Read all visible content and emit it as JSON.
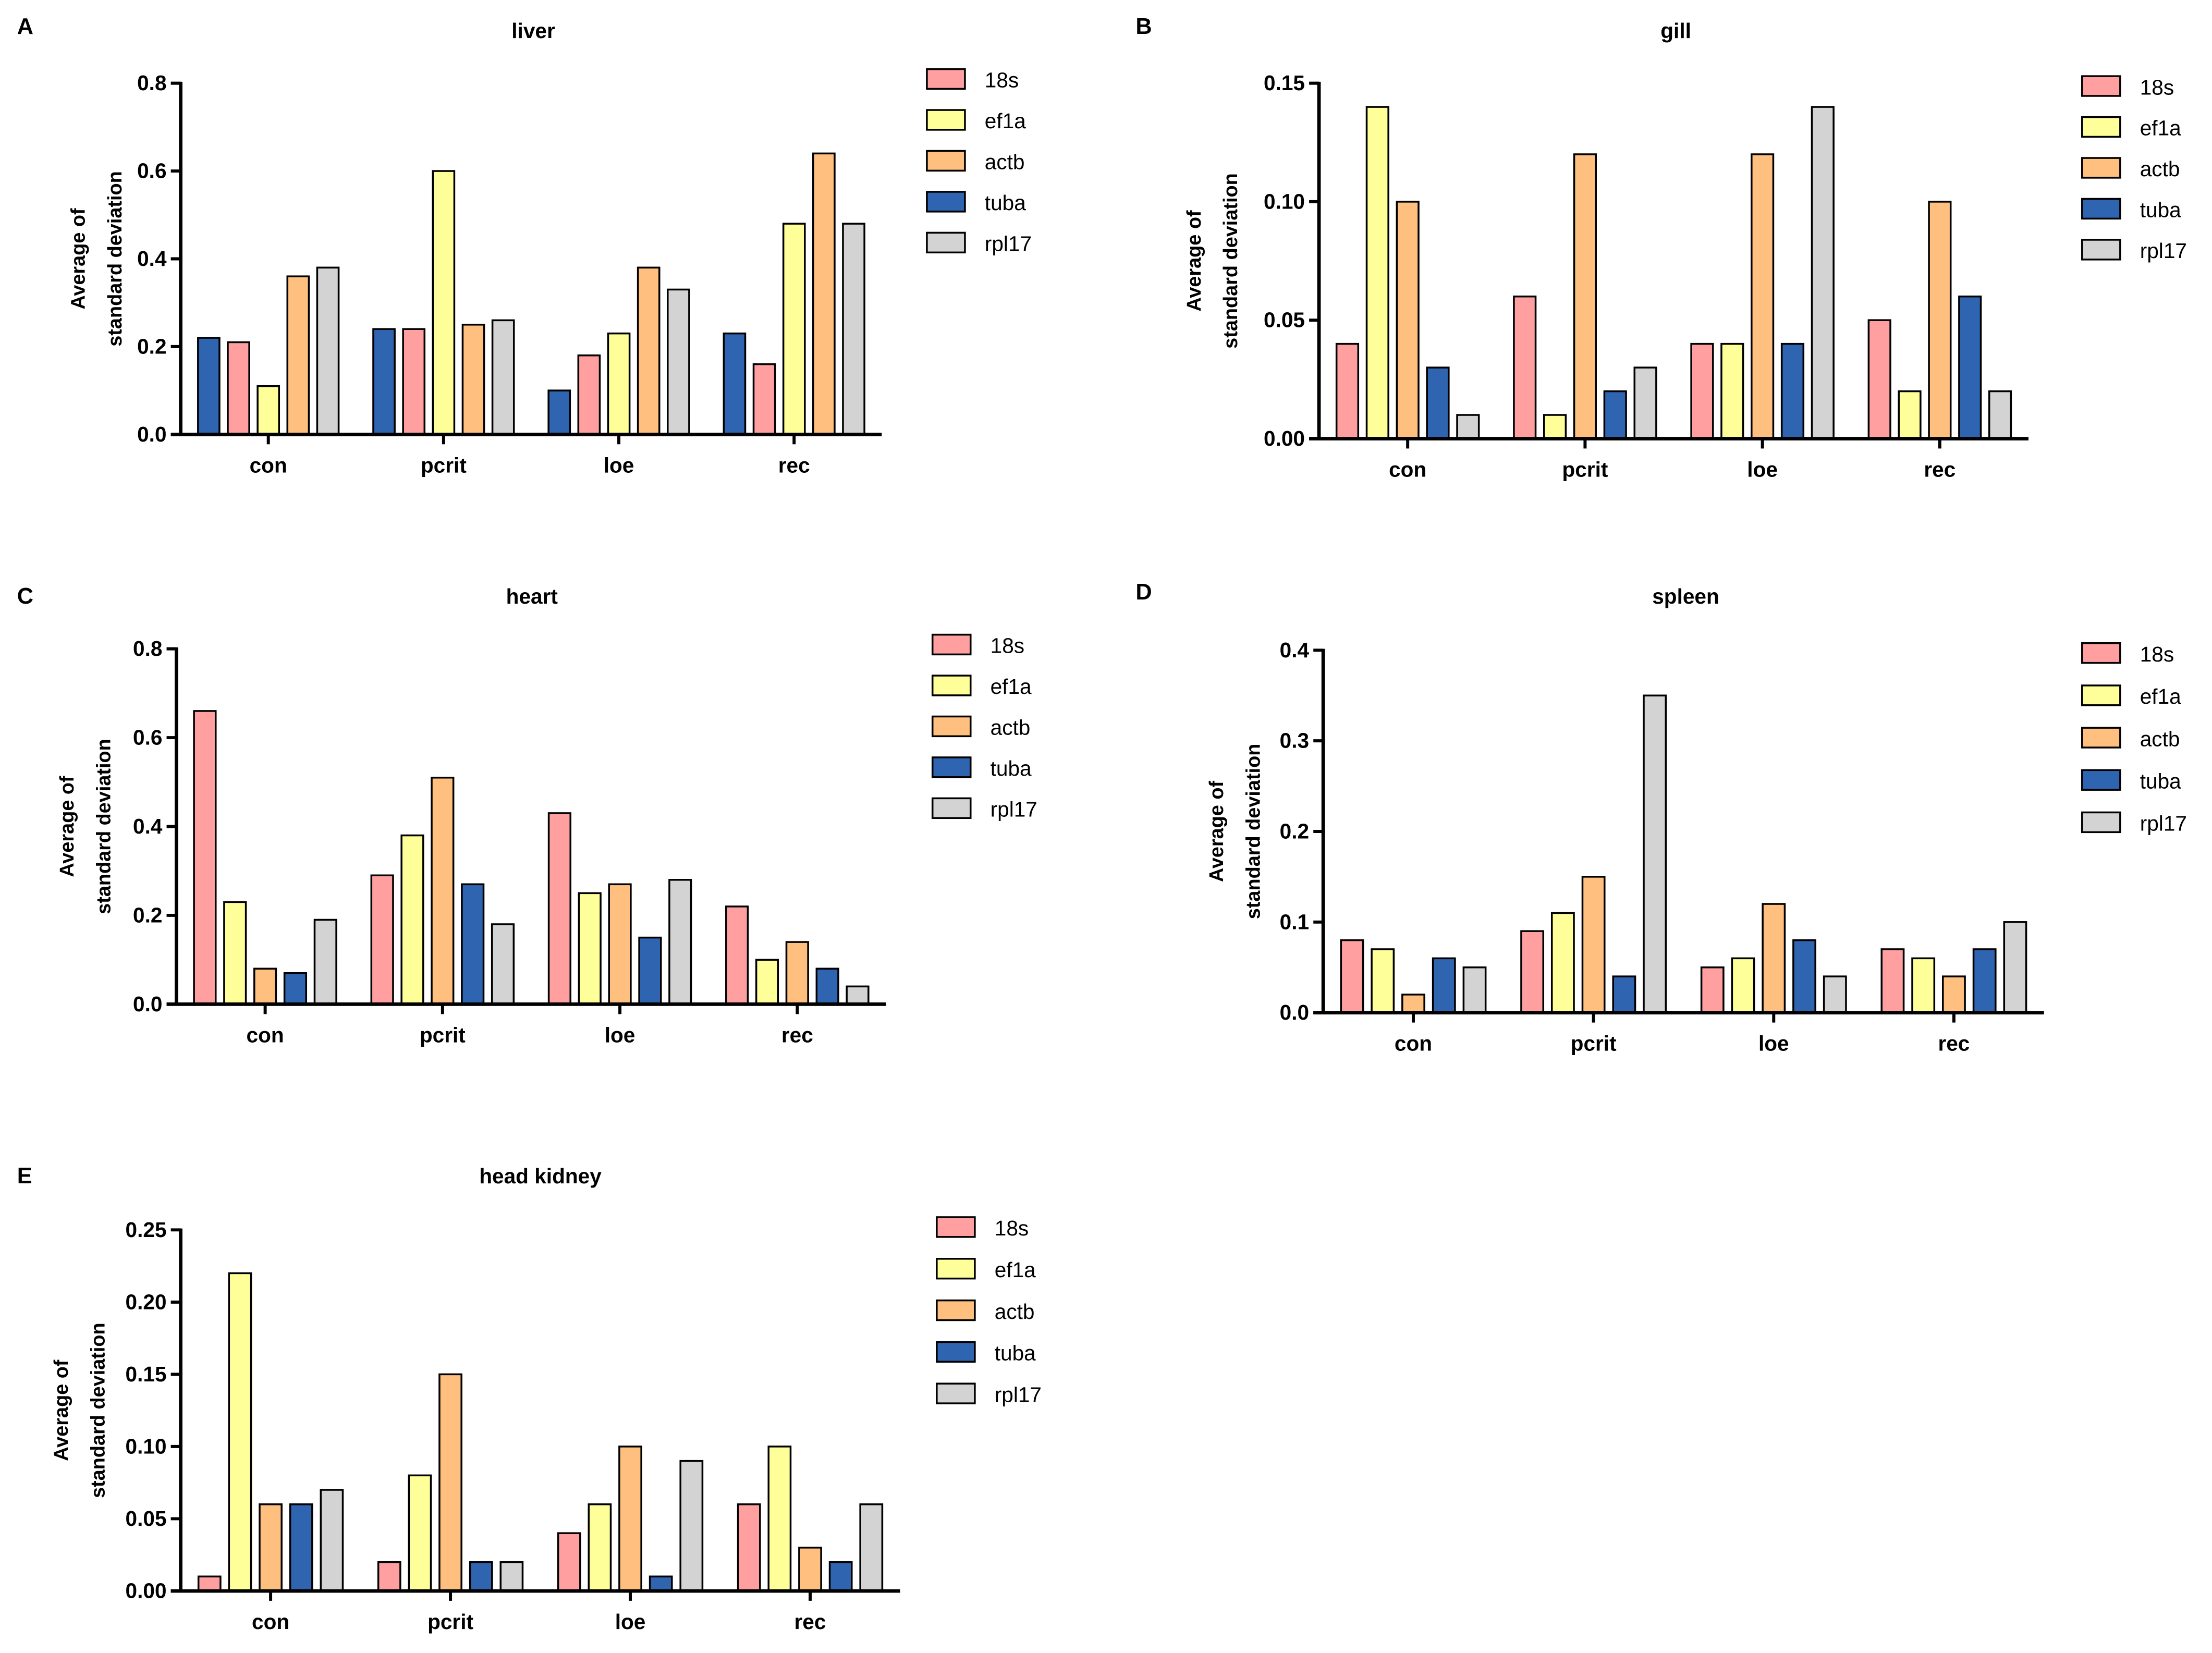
{
  "colors": {
    "18s": "#FF9F9F",
    "ef1a": "#FFFF99",
    "actb": "#FFBF7F",
    "tuba": "#2E64B0",
    "rpl17": "#D3D3D3"
  },
  "legend": [
    "18s",
    "ef1a",
    "actb",
    "tuba",
    "rpl17"
  ],
  "chart_data": [
    {
      "panel": "A",
      "type": "bar",
      "title": "liver",
      "ylabel": [
        "Average of",
        "standard deviation"
      ],
      "ylim": [
        0,
        0.8
      ],
      "yticks": [
        0,
        0.2,
        0.4,
        0.6,
        0.8
      ],
      "ytick_labels": [
        "0.0",
        "0.2",
        "0.4",
        "0.6",
        "0.8"
      ],
      "categories": [
        "con",
        "pcrit",
        "loe",
        "rec"
      ],
      "bar_order": [
        "tuba",
        "18s",
        "ef1a",
        "actb",
        "rpl17"
      ],
      "series": [
        {
          "name": "18s",
          "values": [
            0.21,
            0.24,
            0.18,
            0.16
          ]
        },
        {
          "name": "ef1a",
          "values": [
            0.11,
            0.6,
            0.23,
            0.48
          ]
        },
        {
          "name": "actb",
          "values": [
            0.36,
            0.25,
            0.38,
            0.64
          ]
        },
        {
          "name": "tuba",
          "values": [
            0.22,
            0.24,
            0.1,
            0.23
          ]
        },
        {
          "name": "rpl17",
          "values": [
            0.38,
            0.26,
            0.33,
            0.48
          ]
        }
      ]
    },
    {
      "panel": "B",
      "type": "bar",
      "title": "gill",
      "ylabel": [
        "Average of",
        "standard deviation"
      ],
      "ylim": [
        0,
        0.15
      ],
      "yticks": [
        0,
        0.05,
        0.1,
        0.15
      ],
      "ytick_labels": [
        "0.00",
        "0.05",
        "0.10",
        "0.15"
      ],
      "categories": [
        "con",
        "pcrit",
        "loe",
        "rec"
      ],
      "bar_order": [
        "18s",
        "ef1a",
        "actb",
        "tuba",
        "rpl17"
      ],
      "series": [
        {
          "name": "18s",
          "values": [
            0.04,
            0.06,
            0.04,
            0.05
          ]
        },
        {
          "name": "ef1a",
          "values": [
            0.14,
            0.01,
            0.04,
            0.02
          ]
        },
        {
          "name": "actb",
          "values": [
            0.1,
            0.12,
            0.12,
            0.1
          ]
        },
        {
          "name": "tuba",
          "values": [
            0.03,
            0.02,
            0.04,
            0.06
          ]
        },
        {
          "name": "rpl17",
          "values": [
            0.01,
            0.03,
            0.14,
            0.02
          ]
        }
      ]
    },
    {
      "panel": "C",
      "type": "bar",
      "title": "heart",
      "ylabel": [
        "Average of",
        "standard deviation"
      ],
      "ylim": [
        0,
        0.8
      ],
      "yticks": [
        0,
        0.2,
        0.4,
        0.6,
        0.8
      ],
      "ytick_labels": [
        "0.0",
        "0.2",
        "0.4",
        "0.6",
        "0.8"
      ],
      "categories": [
        "con",
        "pcrit",
        "loe",
        "rec"
      ],
      "bar_order": [
        "18s",
        "ef1a",
        "actb",
        "tuba",
        "rpl17"
      ],
      "series": [
        {
          "name": "18s",
          "values": [
            0.66,
            0.29,
            0.43,
            0.22
          ]
        },
        {
          "name": "ef1a",
          "values": [
            0.23,
            0.38,
            0.25,
            0.1
          ]
        },
        {
          "name": "actb",
          "values": [
            0.08,
            0.51,
            0.27,
            0.14
          ]
        },
        {
          "name": "tuba",
          "values": [
            0.07,
            0.27,
            0.15,
            0.08
          ]
        },
        {
          "name": "rpl17",
          "values": [
            0.19,
            0.18,
            0.28,
            0.04
          ]
        }
      ]
    },
    {
      "panel": "D",
      "type": "bar",
      "title": "spleen",
      "ylabel": [
        "Average of",
        "standard deviation"
      ],
      "ylim": [
        0,
        0.4
      ],
      "yticks": [
        0,
        0.1,
        0.2,
        0.3,
        0.4
      ],
      "ytick_labels": [
        "0.0",
        "0.1",
        "0.2",
        "0.3",
        "0.4"
      ],
      "categories": [
        "con",
        "pcrit",
        "loe",
        "rec"
      ],
      "bar_order": [
        "18s",
        "ef1a",
        "actb",
        "tuba",
        "rpl17"
      ],
      "series": [
        {
          "name": "18s",
          "values": [
            0.08,
            0.09,
            0.05,
            0.07
          ]
        },
        {
          "name": "ef1a",
          "values": [
            0.07,
            0.11,
            0.06,
            0.06
          ]
        },
        {
          "name": "actb",
          "values": [
            0.02,
            0.15,
            0.12,
            0.04
          ]
        },
        {
          "name": "tuba",
          "values": [
            0.06,
            0.04,
            0.08,
            0.07
          ]
        },
        {
          "name": "rpl17",
          "values": [
            0.05,
            0.35,
            0.04,
            0.1
          ]
        }
      ]
    },
    {
      "panel": "E",
      "type": "bar",
      "title": "head kidney",
      "ylabel": [
        "Average of",
        "standard deviation"
      ],
      "ylim": [
        0,
        0.25
      ],
      "yticks": [
        0,
        0.05,
        0.1,
        0.15,
        0.2,
        0.25
      ],
      "ytick_labels": [
        "0.00",
        "0.05",
        "0.10",
        "0.15",
        "0.20",
        "0.25"
      ],
      "categories": [
        "con",
        "pcrit",
        "loe",
        "rec"
      ],
      "bar_order": [
        "18s",
        "ef1a",
        "actb",
        "tuba",
        "rpl17"
      ],
      "series": [
        {
          "name": "18s",
          "values": [
            0.01,
            0.02,
            0.04,
            0.06
          ]
        },
        {
          "name": "ef1a",
          "values": [
            0.22,
            0.08,
            0.06,
            0.1
          ]
        },
        {
          "name": "actb",
          "values": [
            0.06,
            0.15,
            0.1,
            0.03
          ]
        },
        {
          "name": "tuba",
          "values": [
            0.06,
            0.02,
            0.01,
            0.02
          ]
        },
        {
          "name": "rpl17",
          "values": [
            0.07,
            0.02,
            0.09,
            0.06
          ]
        }
      ]
    }
  ]
}
